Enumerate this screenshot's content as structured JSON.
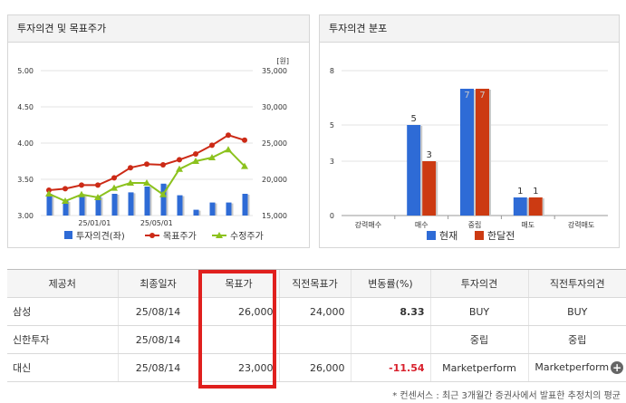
{
  "left_panel": {
    "title": "투자의견 및 목표주가"
  },
  "right_panel": {
    "title": "투자의견 분포"
  },
  "chart_data": [
    {
      "type": "bar+line",
      "title": "투자의견 및 목표주가",
      "left_axis": {
        "ticks": [
          "5.00",
          "4.50",
          "4.00",
          "3.50",
          "3.00"
        ],
        "range": [
          3.0,
          5.0
        ]
      },
      "right_axis": {
        "unit": "[원]",
        "ticks": [
          "35,000",
          "30,000",
          "25,000",
          "20,000",
          "15,000"
        ],
        "range": [
          15000,
          35000
        ]
      },
      "x_ticks": [
        "25/01/01",
        "25/05/01"
      ],
      "series": [
        {
          "name": "투자의견(좌)",
          "type": "bar",
          "color": "#2e6bd6",
          "values": [
            3.3,
            3.2,
            3.28,
            3.26,
            3.3,
            3.32,
            3.4,
            3.44,
            3.28,
            3.08,
            3.18,
            3.18,
            3.3
          ]
        },
        {
          "name": "목표주가",
          "type": "line",
          "color": "#cc2a16",
          "values": [
            18500,
            18700,
            19200,
            19200,
            20200,
            21600,
            22100,
            22000,
            22700,
            23500,
            24700,
            26100,
            25400
          ]
        },
        {
          "name": "수정주가",
          "type": "line",
          "color": "#8cc21e",
          "values": [
            18000,
            17000,
            17900,
            17500,
            18800,
            19500,
            19500,
            17900,
            21400,
            22500,
            23000,
            24100,
            21800
          ]
        }
      ]
    },
    {
      "type": "bar",
      "title": "투자의견 분포",
      "categories": [
        "강력매수",
        "매수",
        "중립",
        "매도",
        "강력매도"
      ],
      "ylim": [
        0,
        8
      ],
      "y_ticks": [
        "8",
        "5",
        "3",
        "0"
      ],
      "series": [
        {
          "name": "현재",
          "color": "#2e6bd6",
          "values": [
            0,
            5,
            7,
            1,
            0
          ],
          "labels": [
            "",
            "5",
            "7",
            "1",
            ""
          ]
        },
        {
          "name": "한달전",
          "color": "#cc3a12",
          "values": [
            0,
            3,
            7,
            1,
            0
          ],
          "labels": [
            "",
            "3",
            "7",
            "1",
            ""
          ]
        }
      ]
    }
  ],
  "table": {
    "headers": [
      "제공처",
      "최종일자",
      "목표가",
      "직전목표가",
      "변동률(%)",
      "투자의견",
      "직전투자의견"
    ],
    "rows": [
      {
        "provider": "삼성",
        "date": "25/08/14",
        "target": "26,000",
        "prev_target": "24,000",
        "change": "8.33",
        "change_negative": false,
        "opinion": "BUY",
        "prev_opinion": "BUY"
      },
      {
        "provider": "신한투자",
        "date": "25/08/14",
        "target": "",
        "prev_target": "",
        "change": "",
        "change_negative": false,
        "opinion": "중립",
        "prev_opinion": "중립"
      },
      {
        "provider": "대신",
        "date": "25/08/14",
        "target": "23,000",
        "prev_target": "26,000",
        "change": "-11.54",
        "change_negative": true,
        "opinion": "Marketperform",
        "prev_opinion": "Marketperform"
      }
    ]
  },
  "footnote": "* 컨센서스 : 최근 3개월간 증권사에서 발표한 추정치의 평균",
  "colors": {
    "highlight": "#e0201e",
    "negative": "#d8202c"
  }
}
